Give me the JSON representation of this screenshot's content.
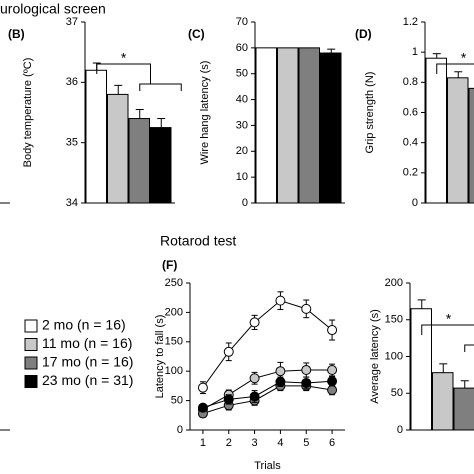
{
  "headings": [
    "urological screen",
    "Rotarod test"
  ],
  "chart_data": [
    {
      "type": "bar",
      "label": "(B)",
      "ylabel": "Body temperature (ºC)",
      "values": [
        36.2,
        35.8,
        35.4,
        35.25
      ],
      "errors": [
        0.12,
        0.15,
        0.15,
        0.15
      ],
      "colors": [
        "#ffffff",
        "#c8c8c8",
        "#7f7f7f",
        "#000000"
      ],
      "ylim": [
        34,
        37
      ],
      "yticks": [
        34,
        35,
        36,
        37
      ],
      "annotations": [
        "*"
      ]
    },
    {
      "type": "bar",
      "label": "(C)",
      "ylabel": "Wire hang latency (s)",
      "values": [
        60,
        60,
        60,
        58
      ],
      "errors": [
        0,
        0,
        0,
        1.5
      ],
      "colors": [
        "#ffffff",
        "#c8c8c8",
        "#7f7f7f",
        "#000000"
      ],
      "ylim": [
        0,
        70
      ],
      "yticks": [
        0,
        10,
        20,
        30,
        40,
        50,
        60,
        70
      ]
    },
    {
      "type": "bar",
      "label": "(D)",
      "ylabel": "Grip strength (N)",
      "values": [
        0.96,
        0.83,
        0.76
      ],
      "errors": [
        0.03,
        0.04,
        0.03
      ],
      "colors": [
        "#ffffff",
        "#c8c8c8",
        "#7f7f7f"
      ],
      "ylim": [
        0,
        1.2
      ],
      "yticks": [
        0,
        0.2,
        0.4,
        0.6,
        0.8,
        1,
        1.2
      ],
      "annotations": [
        "*"
      ]
    },
    {
      "type": "line",
      "label": "(F)",
      "ylabel": "Latency to fall (s)",
      "xlabel": "Trials",
      "x": [
        1,
        2,
        3,
        4,
        5,
        6
      ],
      "xlim": [
        0.5,
        6.5
      ],
      "xticks": [
        1,
        2,
        3,
        4,
        5,
        6
      ],
      "ylim": [
        0,
        250
      ],
      "yticks": [
        0,
        50,
        100,
        150,
        200,
        250
      ],
      "series": [
        {
          "name": "2 mo (n = 16)",
          "color": "#ffffff",
          "values": [
            72,
            133,
            183,
            220,
            206,
            170
          ],
          "errors": [
            10,
            15,
            12,
            15,
            15,
            17
          ]
        },
        {
          "name": "11 mo (n = 16)",
          "color": "#c8c8c8",
          "values": [
            35,
            60,
            88,
            100,
            102,
            102
          ],
          "errors": [
            5,
            8,
            10,
            15,
            12,
            10
          ]
        },
        {
          "name": "17 mo (n = 16)",
          "color": "#7f7f7f",
          "values": [
            28,
            42,
            50,
            75,
            75,
            68
          ],
          "errors": [
            5,
            8,
            8,
            8,
            8,
            8
          ]
        },
        {
          "name": "23 mo (n = 31)",
          "color": "#000000",
          "values": [
            38,
            52,
            57,
            82,
            80,
            83
          ],
          "errors": [
            5,
            8,
            10,
            8,
            10,
            8
          ]
        }
      ]
    },
    {
      "type": "bar",
      "ylabel": "Average latency (s)",
      "values": [
        165,
        78,
        57
      ],
      "errors": [
        12,
        12,
        10
      ],
      "colors": [
        "#ffffff",
        "#c8c8c8",
        "#7f7f7f"
      ],
      "ylim": [
        0,
        200
      ],
      "yticks": [
        0,
        50,
        100,
        150,
        200
      ],
      "annotations": [
        "*"
      ]
    }
  ]
}
